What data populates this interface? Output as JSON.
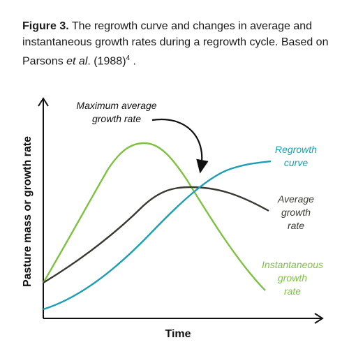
{
  "caption": {
    "label": "Figure 3.",
    "text_before": " The regrowth curve and changes in average and instantaneous growth rates during a regrowth cycle. Based on Parsons ",
    "italic": "et al",
    "text_after": ". (1988)",
    "superscript": "4",
    "end": " ."
  },
  "axes": {
    "xlabel": "Time",
    "ylabel": "Pasture mass or growth rate"
  },
  "annotation": {
    "line1": "Maximum average",
    "line2": "growth rate"
  },
  "curves": {
    "regrowth": {
      "line1": "Regrowth",
      "line2": "curve",
      "color": "#1f9db2"
    },
    "average": {
      "line1": "Average",
      "line2": "growth",
      "line3": "rate",
      "color": "#3a3a33"
    },
    "instantaneous": {
      "line1": "Instantaneous",
      "line2": "growth",
      "line3": "rate",
      "color": "#7dc242"
    }
  }
}
